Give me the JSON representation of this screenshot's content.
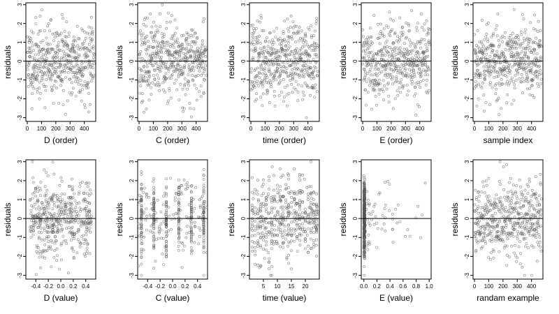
{
  "chart_data": [
    {
      "type": "scatter",
      "ylabel": "residuals",
      "xlabel": "D (order)",
      "xlim": [
        -10,
        480
      ],
      "xticks": [
        0,
        100,
        200,
        300,
        400
      ],
      "ylim": [
        -3.2,
        3.1
      ],
      "yticks": [
        -3,
        -2,
        -1,
        0,
        1,
        2,
        3
      ],
      "points": {
        "kind": "order",
        "n": 470,
        "seed": 11
      }
    },
    {
      "type": "scatter",
      "ylabel": "residuals",
      "xlabel": "C (order)",
      "xlim": [
        -10,
        480
      ],
      "xticks": [
        0,
        100,
        200,
        300,
        400
      ],
      "ylim": [
        -3.2,
        3.1
      ],
      "yticks": [
        -3,
        -2,
        -1,
        0,
        1,
        2,
        3
      ],
      "points": {
        "kind": "order",
        "n": 470,
        "seed": 23
      }
    },
    {
      "type": "scatter",
      "ylabel": "residuals",
      "xlabel": "time (order)",
      "xlim": [
        -10,
        480
      ],
      "xticks": [
        0,
        100,
        200,
        300,
        400
      ],
      "ylim": [
        -3.2,
        3.1
      ],
      "yticks": [
        -3,
        -2,
        -1,
        0,
        1,
        2,
        3
      ],
      "points": {
        "kind": "order",
        "n": 470,
        "seed": 37
      }
    },
    {
      "type": "scatter",
      "ylabel": "residuals",
      "xlabel": "E (order)",
      "xlim": [
        -10,
        480
      ],
      "xticks": [
        0,
        100,
        200,
        300,
        400
      ],
      "ylim": [
        -3.2,
        3.1
      ],
      "yticks": [
        -3,
        -2,
        -1,
        0,
        1,
        2,
        3
      ],
      "points": {
        "kind": "order",
        "n": 470,
        "seed": 41
      }
    },
    {
      "type": "scatter",
      "ylabel": "residuals",
      "xlabel": "sample index",
      "xlim": [
        -10,
        480
      ],
      "xticks": [
        0,
        100,
        200,
        300,
        400
      ],
      "ylim": [
        -3.2,
        3.1
      ],
      "yticks": [
        -3,
        -2,
        -1,
        0,
        1,
        2,
        3
      ],
      "points": {
        "kind": "order",
        "n": 470,
        "seed": 53
      }
    },
    {
      "type": "scatter",
      "ylabel": "residuals",
      "xlabel": "D (value)",
      "xlim": [
        -0.56,
        0.56
      ],
      "xticks": [
        -0.4,
        -0.2,
        0.0,
        0.2,
        0.4
      ],
      "xtick_labels": [
        "-0.4",
        "-0.2",
        "0.0",
        "0.2",
        "0.4"
      ],
      "ylim": [
        -3.2,
        3.1
      ],
      "yticks": [
        -3,
        -2,
        -1,
        0,
        1,
        2,
        3
      ],
      "points": {
        "kind": "uniform",
        "n": 470,
        "seed": 61,
        "range": [
          -0.5,
          0.5
        ]
      }
    },
    {
      "type": "scatter",
      "ylabel": "residuals",
      "xlabel": "C (value)",
      "xlim": [
        -0.56,
        0.56
      ],
      "xticks": [
        -0.4,
        -0.2,
        0.0,
        0.2,
        0.4
      ],
      "xtick_labels": [
        "-0.4",
        "-0.2",
        "0.0",
        "0.2",
        "0.4"
      ],
      "ylim": [
        -3.2,
        3.1
      ],
      "yticks": [
        -3,
        -2,
        -1,
        0,
        1,
        2,
        3
      ],
      "points": {
        "kind": "discrete",
        "n": 470,
        "seed": 67,
        "levels": [
          -0.5,
          -0.3,
          -0.1,
          0.1,
          0.3,
          0.5
        ]
      }
    },
    {
      "type": "scatter",
      "ylabel": "residuals",
      "xlabel": "time (value)",
      "xlim": [
        0,
        25
      ],
      "xticks": [
        5,
        10,
        15,
        20
      ],
      "ylim": [
        -3.2,
        3.1
      ],
      "yticks": [
        -3,
        -2,
        -1,
        0,
        1,
        2,
        3
      ],
      "points": {
        "kind": "discrete",
        "n": 470,
        "seed": 71,
        "levels": [
          1,
          2,
          3,
          4,
          5,
          6,
          7,
          8,
          9,
          10,
          11,
          12,
          13,
          14,
          15,
          16,
          17,
          18,
          19,
          20,
          21,
          22,
          23,
          24
        ]
      }
    },
    {
      "type": "scatter",
      "ylabel": "residuals",
      "xlabel": "E (value)",
      "xlim": [
        -0.04,
        1.03
      ],
      "xticks": [
        0.0,
        0.2,
        0.4,
        0.6,
        0.8,
        1.0
      ],
      "xtick_labels": [
        "0.0",
        "0.2",
        "0.4",
        "0.6",
        "0.8",
        "1.0"
      ],
      "ylim": [
        -3.2,
        3.1
      ],
      "yticks": [
        -3,
        -2,
        -1,
        0,
        1,
        2,
        3
      ],
      "points": {
        "kind": "skewed",
        "n": 470,
        "seed": 79
      }
    },
    {
      "type": "scatter",
      "ylabel": "residuals",
      "xlabel": "randam example",
      "xlim": [
        -10,
        480
      ],
      "xticks": [
        0,
        100,
        200,
        300,
        400
      ],
      "ylim": [
        -3.2,
        3.1
      ],
      "yticks": [
        -3,
        -2,
        -1,
        0,
        1,
        2,
        3
      ],
      "points": {
        "kind": "order",
        "n": 470,
        "seed": 89
      }
    }
  ]
}
